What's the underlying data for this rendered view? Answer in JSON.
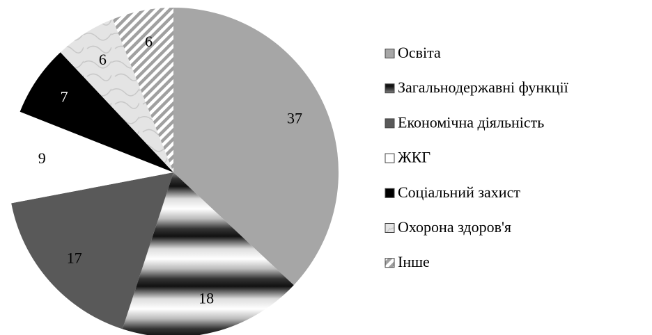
{
  "chart_data": {
    "type": "pie",
    "categories": [
      "Освіта",
      "Загальнодержавні функції",
      "Економічна діяльність",
      "ЖКГ",
      "Соціальний захист",
      "Охорона здоров'я",
      "Інше"
    ],
    "values": [
      37,
      18,
      17,
      9,
      7,
      6,
      6
    ],
    "colors": [
      "#a6a6a6",
      "#8c8c8c",
      "#595959",
      "#ffffff",
      "#000000",
      "#e2e2e2",
      "#a0a0a0"
    ],
    "patterns": [
      null,
      "banded",
      null,
      null,
      null,
      "marble",
      "diagonal"
    ],
    "legend": "right"
  }
}
